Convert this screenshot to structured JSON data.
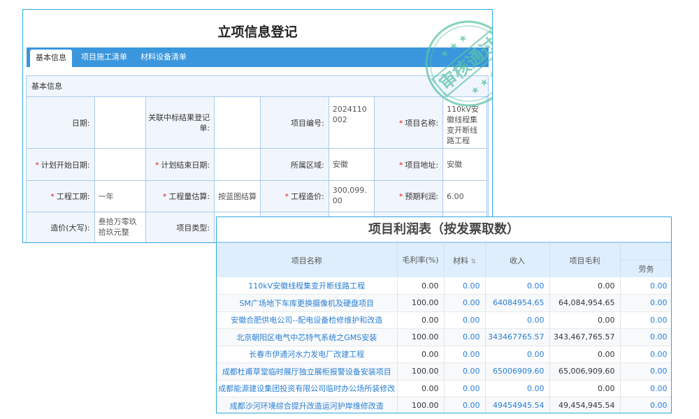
{
  "registration": {
    "title": "立项信息登记",
    "tabs": [
      {
        "label": "基本信息",
        "active": true
      },
      {
        "label": "项目施工清单"
      },
      {
        "label": "材料设备清单"
      }
    ],
    "section_title": "基本信息",
    "fields": {
      "date": {
        "label": "日期:"
      },
      "linked_bid": {
        "label": "关联中标结果登记单:"
      },
      "project_no": {
        "label": "项目编号:",
        "value": "2024110002"
      },
      "project_name": {
        "label": "项目名称:",
        "value": "110kV安徽线程集变开断线路工程",
        "required": true
      },
      "plan_start": {
        "label": "计划开始日期:",
        "required": true
      },
      "plan_end": {
        "label": "计划结束日期:",
        "required": true
      },
      "region": {
        "label": "所属区域:",
        "value": "安徽"
      },
      "address": {
        "label": "项目地址:",
        "value": "安徽",
        "required": true
      },
      "duration": {
        "label": "工程工期:",
        "value": "一年",
        "required": true
      },
      "quantity_estimate": {
        "label": "工程量估算:",
        "value": "按蓝图结算",
        "required": true
      },
      "cost": {
        "label": "工程造价:",
        "value": "300,099.00",
        "required": true
      },
      "expected_profit": {
        "label": "预期利润:",
        "value": "6.00",
        "required": true
      },
      "cost_upper": {
        "label": "造价(大写):",
        "value": "叁拾万零玖拾玖元整"
      },
      "project_type": {
        "label": "项目类型:"
      }
    },
    "stamp_text": "审核通过",
    "stamp_color": "#5cc4a8"
  },
  "profit": {
    "title": "项目利润表（按发票取数）",
    "headers": {
      "name": "项目名称",
      "margin_rate": "毛利率(%)",
      "material": "材料",
      "revenue": "收入",
      "gross_profit": "项目毛利",
      "labor": "劳务"
    },
    "rows": [
      {
        "name": "110kV安徽线程集变开断线路工程",
        "rate": "0.00",
        "material": "0.00",
        "revenue": "0.00",
        "profit": "0.00",
        "labor": "0.00"
      },
      {
        "name": "SM广场地下车库更换摄像机及硬盘项目",
        "rate": "100.00",
        "material": "0.00",
        "revenue": "64084954.65",
        "profit": "64,084,954.65",
        "labor": "0.00"
      },
      {
        "name": "安徽合肥供电公司--配电设备检修维护和改造",
        "rate": "0.00",
        "material": "0.00",
        "revenue": "0.00",
        "profit": "0.00",
        "labor": "0.00"
      },
      {
        "name": "北京朝阳区电气中芯特气系统之GMS安装",
        "rate": "100.00",
        "material": "0.00",
        "revenue": "343467765.57",
        "profit": "343,467,765.57",
        "labor": "0.00"
      },
      {
        "name": "长春市伊通河水力发电厂改建工程",
        "rate": "0.00",
        "material": "0.00",
        "revenue": "0.00",
        "profit": "0.00",
        "labor": "0.00"
      },
      {
        "name": "成都杜甫草堂临时展厅独立展柜报警设备安装项目",
        "rate": "100.00",
        "material": "0.00",
        "revenue": "65006909.60",
        "profit": "65,006,909.60",
        "labor": "0.00"
      },
      {
        "name": "成都能源建设集团投资有限公司临时办公场所装修改",
        "rate": "0.00",
        "material": "0.00",
        "revenue": "0.00",
        "profit": "0.00",
        "labor": "0.00"
      },
      {
        "name": "成都沙河环境综合提升改造运河护岸维修改造",
        "rate": "100.00",
        "material": "0.00",
        "revenue": "49454945.54",
        "profit": "49,454,945.54",
        "labor": "0.00"
      }
    ]
  }
}
